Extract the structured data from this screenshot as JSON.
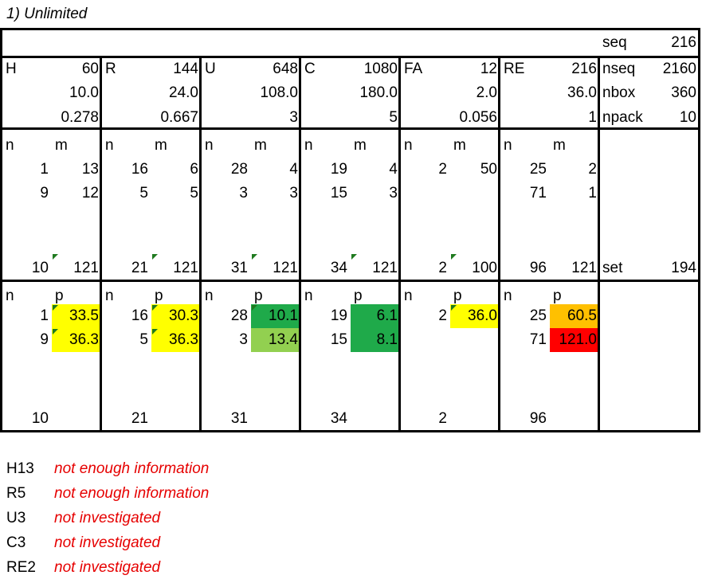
{
  "title": "1) Unlimited",
  "summary": {
    "seq_label": "seq",
    "seq_value": "216",
    "nseq_label": "nseq",
    "nseq_value": "2160",
    "nbox_label": "nbox",
    "nbox_value": "360",
    "npack_label": "npack",
    "npack_value": "10",
    "set_label": "set",
    "set_value": "194"
  },
  "groups": [
    {
      "code": "H",
      "total": "60",
      "v1": "10.0",
      "v2": "0.278",
      "m_rows": [
        [
          "1",
          "13"
        ],
        [
          "9",
          "12"
        ]
      ],
      "m_foot": [
        "10",
        "121"
      ],
      "m_flag": true,
      "p_rows": [
        [
          "1",
          "33.5",
          "#ffff00",
          true
        ],
        [
          "9",
          "36.3",
          "#ffff00",
          true
        ]
      ],
      "p_foot": "10"
    },
    {
      "code": "R",
      "total": "144",
      "v1": "24.0",
      "v2": "0.667",
      "m_rows": [
        [
          "16",
          "6"
        ],
        [
          "5",
          "5"
        ]
      ],
      "m_foot": [
        "21",
        "121"
      ],
      "m_flag": true,
      "p_rows": [
        [
          "16",
          "30.3",
          "#ffff00",
          true
        ],
        [
          "5",
          "36.3",
          "#ffff00",
          true
        ]
      ],
      "p_foot": "21"
    },
    {
      "code": "U",
      "total": "648",
      "v1": "108.0",
      "v2": "3",
      "m_rows": [
        [
          "28",
          "4"
        ],
        [
          "3",
          "3"
        ]
      ],
      "m_foot": [
        "31",
        "121"
      ],
      "m_flag": true,
      "p_rows": [
        [
          "28",
          "10.1",
          "#1faa4a",
          true
        ],
        [
          "3",
          "13.4",
          "#92d050",
          false
        ]
      ],
      "p_foot": "31"
    },
    {
      "code": "C",
      "total": "1080",
      "v1": "180.0",
      "v2": "5",
      "m_rows": [
        [
          "19",
          "4"
        ],
        [
          "15",
          "3"
        ]
      ],
      "m_foot": [
        "34",
        "121"
      ],
      "m_flag": true,
      "p_rows": [
        [
          "19",
          "6.1",
          "#1faa4a",
          false
        ],
        [
          "15",
          "8.1",
          "#1faa4a",
          false
        ]
      ],
      "p_foot": "34"
    },
    {
      "code": "FA",
      "total": "12",
      "v1": "2.0",
      "v2": "0.056",
      "m_rows": [
        [
          "2",
          "50"
        ]
      ],
      "m_foot": [
        "2",
        "100"
      ],
      "m_flag": true,
      "p_rows": [
        [
          "2",
          "36.0",
          "#ffff00",
          true
        ]
      ],
      "p_foot": "2"
    },
    {
      "code": "RE",
      "total": "216",
      "v1": "36.0",
      "v2": "1",
      "m_rows": [
        [
          "25",
          "2"
        ],
        [
          "71",
          "1"
        ]
      ],
      "m_foot": [
        "96",
        "121"
      ],
      "m_flag": false,
      "p_rows": [
        [
          "25",
          "60.5",
          "#ffc000",
          false
        ],
        [
          "71",
          "121.0",
          "#ff0000",
          false
        ]
      ],
      "p_foot": "96"
    }
  ],
  "col_labels": {
    "n": "n",
    "m": "m",
    "p": "p"
  },
  "notes": [
    {
      "key": "H13",
      "text": "not enough information"
    },
    {
      "key": "R5",
      "text": "not enough information"
    },
    {
      "key": "U3",
      "text": "not investigated"
    },
    {
      "key": "C3",
      "text": "not investigated"
    },
    {
      "key": "RE2",
      "text": "not investigated"
    }
  ]
}
